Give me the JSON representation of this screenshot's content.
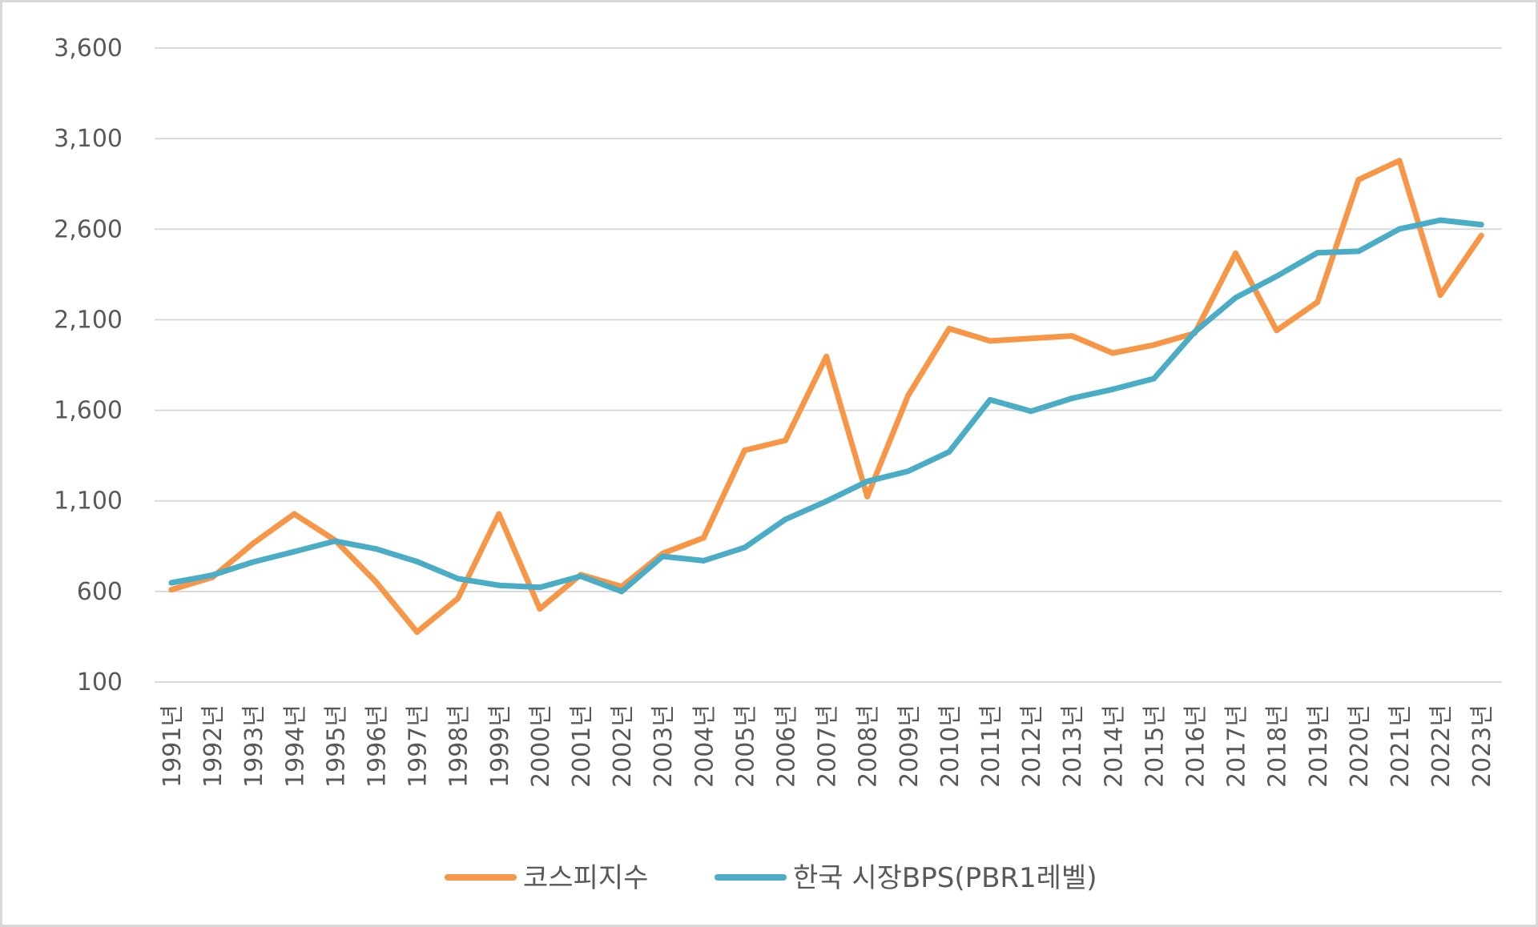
{
  "chart_data": {
    "type": "line",
    "title": "",
    "xlabel": "",
    "ylabel": "",
    "ylim": [
      100,
      3600
    ],
    "yticks": [
      "100",
      "600",
      "1,100",
      "1,600",
      "2,100",
      "2,600",
      "3,100",
      "3,600"
    ],
    "ytick_values": [
      100,
      600,
      1100,
      1600,
      2100,
      2600,
      3100,
      3600
    ],
    "categories": [
      "1991년",
      "1992년",
      "1993년",
      "1994년",
      "1995년",
      "1996년",
      "1997년",
      "1998년",
      "1999년",
      "2000년",
      "2001년",
      "2002년",
      "2003년",
      "2004년",
      "2005년",
      "2006년",
      "2007년",
      "2008년",
      "2009년",
      "2010년",
      "2011년",
      "2012년",
      "2013년",
      "2014년",
      "2015년",
      "2016년",
      "2017년",
      "2018년",
      "2019년",
      "2020년",
      "2021년",
      "2022년",
      "2023년"
    ],
    "grid": true,
    "legend_position": "bottom",
    "series": [
      {
        "name": "코스피지수",
        "color": "#F79646",
        "values": [
          610,
          678,
          866,
          1028,
          882,
          652,
          376,
          562,
          1028,
          504,
          693,
          627,
          810,
          896,
          1379,
          1434,
          1897,
          1124,
          1683,
          2051,
          1983,
          1997,
          2011,
          1916,
          1961,
          2026,
          2467,
          2041,
          2198,
          2873,
          2978,
          2236,
          2565
        ]
      },
      {
        "name": "한국 시장BPS(PBR1레벨)",
        "color": "#4BACC6",
        "values": [
          648,
          690,
          763,
          820,
          878,
          835,
          765,
          671,
          634,
          623,
          684,
          600,
          794,
          770,
          842,
          998,
          1098,
          1208,
          1264,
          1371,
          1658,
          1595,
          1666,
          1716,
          1775,
          2033,
          2222,
          2340,
          2470,
          2478,
          2601,
          2650,
          2625
        ]
      }
    ]
  }
}
